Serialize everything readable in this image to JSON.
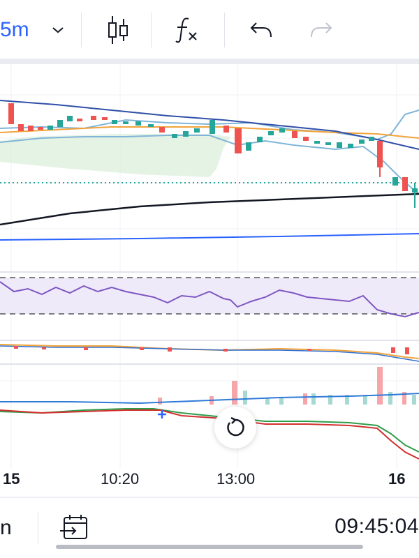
{
  "toolbar": {
    "interval_label": "5m",
    "icons": [
      "chevron-down-icon",
      "candles-icon",
      "indicators-fx-icon",
      "undo-icon",
      "redo-icon"
    ]
  },
  "chart": {
    "x_labels": [
      "15",
      "10:20",
      "13:00",
      "16"
    ]
  },
  "footer": {
    "left_label": "n",
    "clock": "09:45:04"
  },
  "colors": {
    "accent": "#2962ff",
    "up": "#26a69a",
    "down": "#ef5350"
  }
}
